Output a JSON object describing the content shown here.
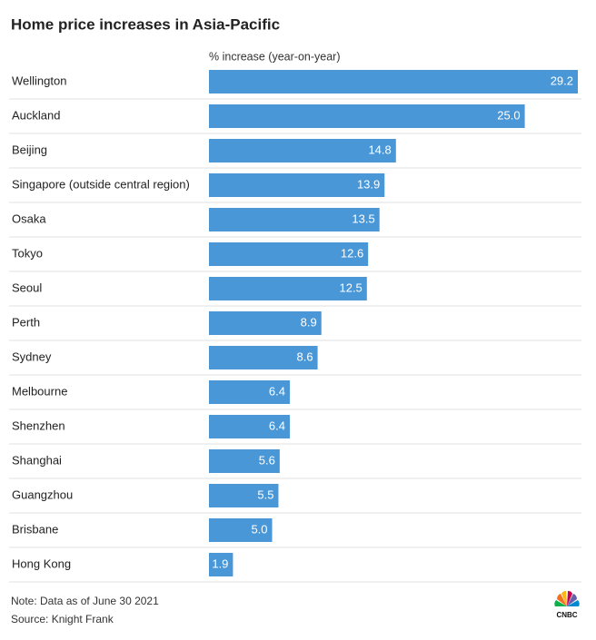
{
  "chart_data": {
    "type": "bar",
    "orientation": "horizontal",
    "title": "Home price increases in Asia-Pacific",
    "x_label": "% increase (year-on-year)",
    "categories": [
      "Wellington",
      "Auckland",
      "Beijing",
      "Singapore (outside central region)",
      "Osaka",
      "Tokyo",
      "Seoul",
      "Perth",
      "Sydney",
      "Melbourne",
      "Shenzhen",
      "Shanghai",
      "Guangzhou",
      "Brisbane",
      "Hong Kong"
    ],
    "values": [
      29.2,
      25,
      14.8,
      13.9,
      13.5,
      12.6,
      12.5,
      8.9,
      8.6,
      6.4,
      6.4,
      5.6,
      5.5,
      5,
      1.9
    ],
    "value_labels": [
      "29.2",
      "25.0",
      "14.8",
      "13.9",
      "13.5",
      "12.6",
      "12.5",
      "8.9",
      "8.6",
      "6.4",
      "6.4",
      "5.6",
      "5.5",
      "5.0",
      "1.9"
    ],
    "color": "#4a97d7",
    "note": "Note: Data as of June 30 2021",
    "source": "Source: Knight Frank",
    "brand": "CNBC"
  }
}
